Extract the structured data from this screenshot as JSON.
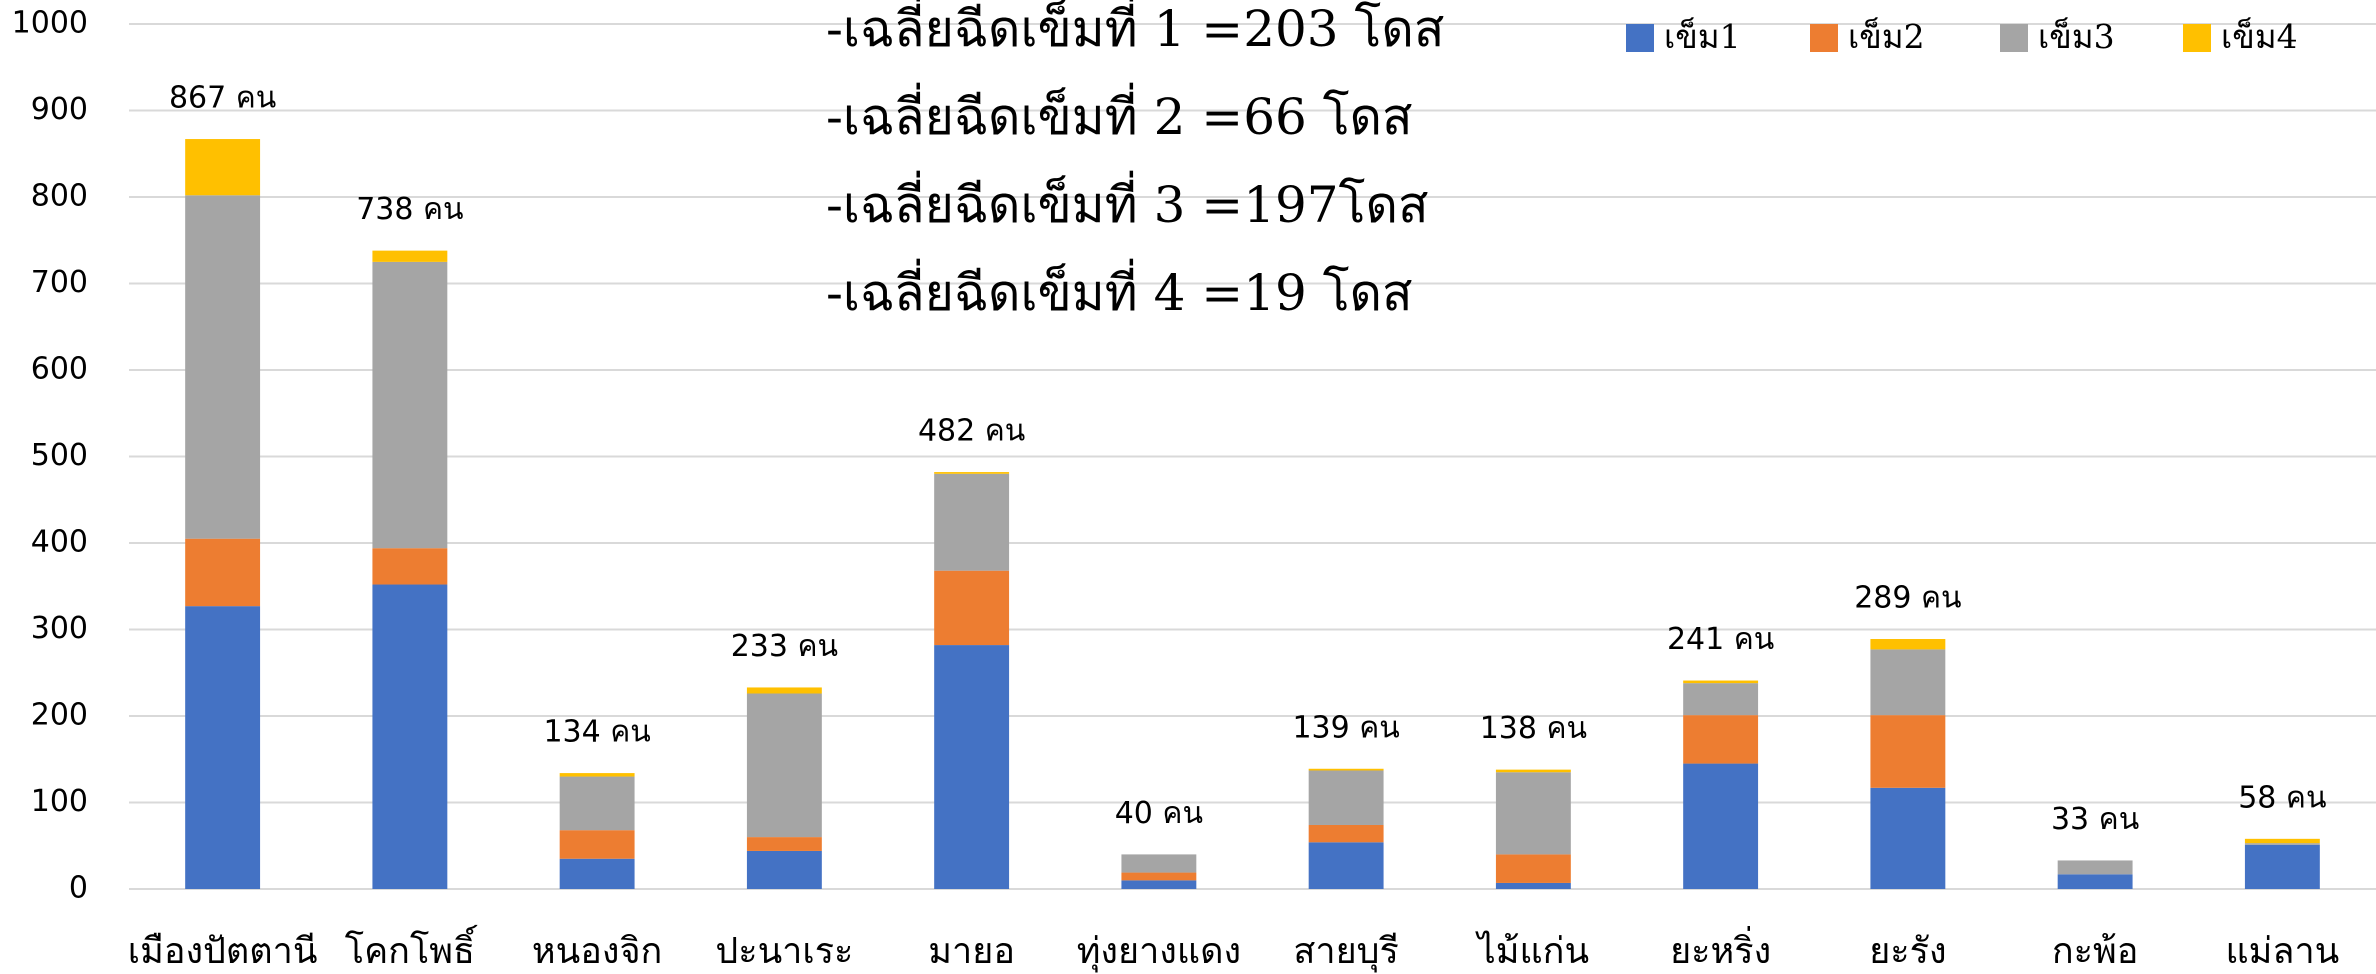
{
  "chart_data": {
    "type": "stacked_bar",
    "categories": [
      "เมืองปัตตานี",
      "โคกโพธิ์",
      "หนองจิก",
      "ปะนาเระ",
      "มายอ",
      "ทุ่งยางแดง",
      "สายบุรี",
      "ไม้แก่น",
      "ยะหริ่ง",
      "ยะรัง",
      "กะพ้อ",
      "แม่ลาน"
    ],
    "series": [
      {
        "name": "เข็ม1",
        "color": "#4472c4",
        "values": [
          327,
          352,
          35,
          44,
          282,
          10,
          54,
          7,
          145,
          117,
          17,
          51
        ]
      },
      {
        "name": "เข็ม2",
        "color": "#ed7d31",
        "values": [
          78,
          42,
          33,
          16,
          86,
          9,
          20,
          33,
          56,
          84,
          0,
          0
        ]
      },
      {
        "name": "เข็ม3",
        "color": "#a5a5a5",
        "values": [
          397,
          331,
          62,
          166,
          112,
          21,
          63,
          95,
          37,
          76,
          16,
          2
        ]
      },
      {
        "name": "เข็ม4",
        "color": "#ffc000",
        "values": [
          65,
          13,
          4,
          7,
          2,
          0,
          2,
          3,
          3,
          12,
          0,
          5
        ]
      }
    ],
    "totals": [
      867,
      738,
      134,
      233,
      482,
      40,
      139,
      138,
      241,
      289,
      33,
      58
    ],
    "total_labels": [
      "867 คน",
      "738 คน",
      "134 คน",
      "233 คน",
      "482 คน",
      "40 คน",
      "139 คน",
      "138 คน",
      "241 คน",
      "289 คน",
      "33 คน",
      "58 คน"
    ],
    "annotations": [
      "-เฉลี่ยฉีดเข็มที่ 1 =203 โดส",
      "-เฉลี่ยฉีดเข็มที่ 2 =66 โดส",
      "-เฉลี่ยฉีดเข็มที่ 3 =197โดส",
      "-เฉลี่ยฉีดเข็มที่ 4 =19 โดส"
    ],
    "ylim": [
      0,
      1000
    ],
    "yticks": [
      0,
      100,
      200,
      300,
      400,
      500,
      600,
      700,
      800,
      900,
      1000
    ],
    "grid": true,
    "legend": "top-right"
  }
}
